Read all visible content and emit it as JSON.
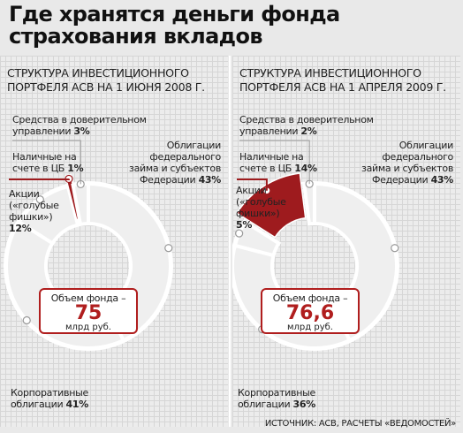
{
  "title": "Где хранятся деньги фонда страхования вкладов",
  "source": "ИСТОЧНИК: АСВ, РАСЧЕТЫ «ВЕДОМОСТЕЙ»",
  "colors": {
    "highlight": "#9e1b1e",
    "ring": "#ffffff",
    "connector": "#9e1b1e"
  },
  "chart_data": [
    {
      "type": "pie",
      "title": "СТРУКТУРА ИНВЕСТИЦИОННОГО ПОРТФЕЛЯ АСВ НА 1 ИЮНЯ 2008 Г.",
      "center_label": "Объем фонда –",
      "center_value": "75",
      "center_unit": "млрд руб.",
      "slices": [
        {
          "label": "Облигации федерального займа и субъектов Федерации",
          "value": 43
        },
        {
          "label": "Корпоративные облигации",
          "value": 41
        },
        {
          "label": "Акции («голубые фишки»)",
          "value": 12
        },
        {
          "label": "Наличные на счете в ЦБ",
          "value": 1
        },
        {
          "label": "Средства в доверительном управлении",
          "value": 3
        }
      ],
      "highlight": "Наличные на счете в ЦБ",
      "text": {
        "s1": "Средства в доверительном",
        "s2": "управлении",
        "s_pct": "3%",
        "n1": "Наличные на",
        "n2": "счете в ЦБ",
        "n_pct": "1%",
        "a1": "Акции",
        "a2": "(«голубые",
        "a3": "фишки»)",
        "a_pct": "12%",
        "o1": "Облигации",
        "o2": "федерального",
        "o3": "займа и субъектов",
        "o4": "Федерации",
        "o_pct": "43%",
        "k1": "Корпоративные",
        "k2": "облигации",
        "k_pct": "41%"
      }
    },
    {
      "type": "pie",
      "title": "СТРУКТУРА ИНВЕСТИЦИОННОГО ПОРТФЕЛЯ АСВ НА 1 АПРЕЛЯ 2009 Г.",
      "center_label": "Объем фонда –",
      "center_value": "76,6",
      "center_unit": "млрд руб.",
      "slices": [
        {
          "label": "Облигации федерального займа и субъектов Федерации",
          "value": 43
        },
        {
          "label": "Корпоративные облигации",
          "value": 36
        },
        {
          "label": "Акции («голубые фишки»)",
          "value": 5
        },
        {
          "label": "Наличные на счете в ЦБ",
          "value": 14
        },
        {
          "label": "Средства в доверительном управлении",
          "value": 2
        }
      ],
      "highlight": "Наличные на счете в ЦБ",
      "text": {
        "s1": "Средства в доверительном",
        "s2": "управлении",
        "s_pct": "2%",
        "n1": "Наличные на",
        "n2": "счете в ЦБ",
        "n_pct": "14%",
        "a1": "Акции",
        "a2": "(«голубые",
        "a3": "фишки»)",
        "a_pct": "5%",
        "o1": "Облигации",
        "o2": "федерального",
        "o3": "займа и субъектов",
        "o4": "Федерации",
        "o_pct": "43%",
        "k1": "Корпоративные",
        "k2": "облигации",
        "k_pct": "36%"
      }
    }
  ]
}
